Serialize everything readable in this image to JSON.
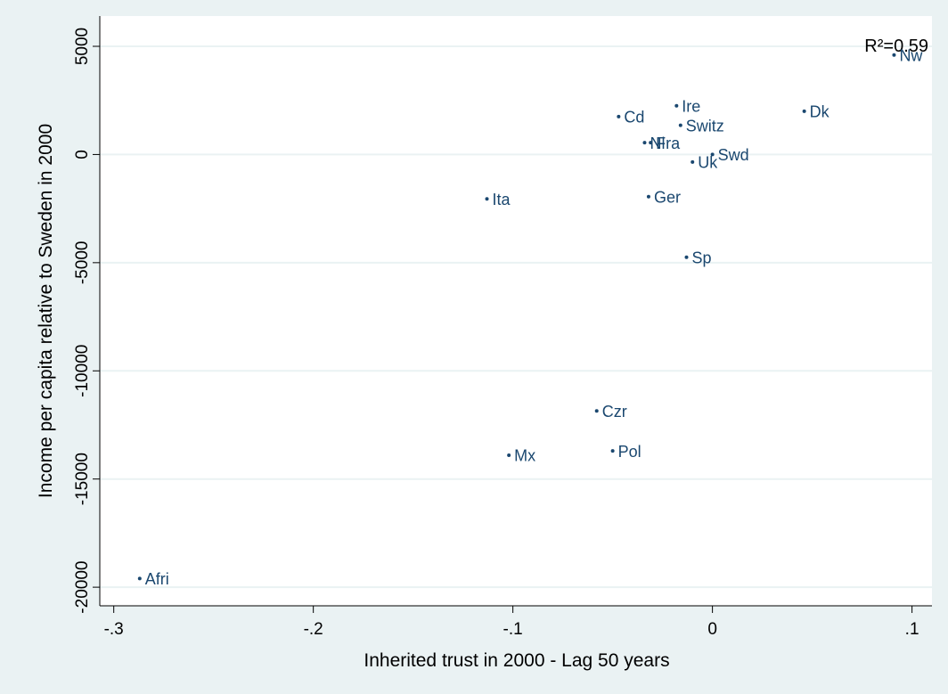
{
  "chart_data": {
    "type": "scatter",
    "x_label": "Inherited trust in 2000 - Lag 50 years",
    "y_label": "Income per capita relative to Sweden in 2000",
    "annotation": "R²=0.59",
    "labels": [
      "Nw",
      "Dk",
      "Ire",
      "Cd",
      "Switz",
      "Nl",
      "Fra",
      "Swd",
      "Uk",
      "Ita",
      "Ger",
      "Sp",
      "Czr",
      "Pol",
      "Mx",
      "Afri"
    ],
    "x": [
      0.091,
      0.046,
      -0.018,
      -0.047,
      -0.016,
      -0.034,
      -0.031,
      0,
      -0.01,
      -0.113,
      -0.032,
      -0.013,
      -0.058,
      -0.05,
      -0.102,
      -0.287
    ],
    "values": [
      4600,
      2000,
      2250,
      1750,
      1350,
      550,
      550,
      0,
      -350,
      -2050,
      -1950,
      -4750,
      -11850,
      -13700,
      -13900,
      -19600
    ],
    "color": "#1a476f",
    "xlim": [
      -0.307,
      0.11
    ],
    "ylim": [
      -20860,
      6400
    ],
    "xticks": [
      {
        "value": -0.3,
        "label": "-.3"
      },
      {
        "value": -0.2,
        "label": "-.2"
      },
      {
        "value": -0.1,
        "label": "-.1"
      },
      0,
      {
        "value": 0.1,
        "label": ".1"
      }
    ],
    "yticks": [
      5000,
      0,
      -5000,
      -10000,
      -15000,
      -20000
    ],
    "grid": true
  }
}
